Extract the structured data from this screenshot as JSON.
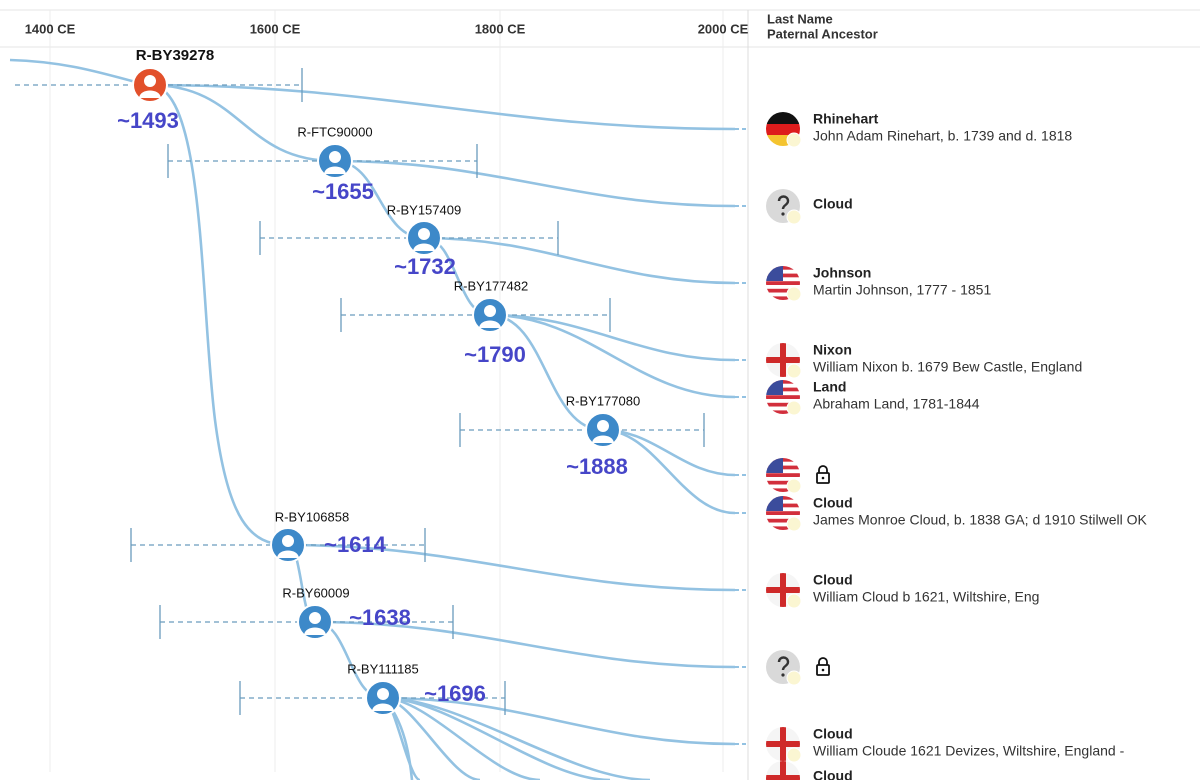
{
  "timeline": {
    "ticks": [
      "1400 CE",
      "1600 CE",
      "1800 CE",
      "2000 CE"
    ]
  },
  "header": {
    "last_name": "Last Name",
    "paternal_ancestor": "Paternal Ancestor"
  },
  "nodes": [
    {
      "label": "R-BY39278",
      "year": "~1493"
    },
    {
      "label": "R-FTC90000",
      "year": "~1655"
    },
    {
      "label": "R-BY157409",
      "year": "~1732"
    },
    {
      "label": "R-BY177482",
      "year": "~1790"
    },
    {
      "label": "R-BY177080",
      "year": "~1888"
    },
    {
      "label": "R-BY106858",
      "year": "~1614"
    },
    {
      "label": "R-BY60009",
      "year": "~1638"
    },
    {
      "label": "R-BY111185",
      "year": "~1696"
    }
  ],
  "ancestors": [
    {
      "surname": "Rhinehart",
      "description": "John Adam Rinehart, b. 1739 and d. 1818"
    },
    {
      "surname": "Cloud"
    },
    {
      "surname": "Johnson",
      "description": "Martin Johnson, 1777 - 1851"
    },
    {
      "surname": "Nixon",
      "description": "William Nixon b. 1679 Bew Castle, England"
    },
    {
      "surname": "Land",
      "description": "Abraham Land, 1781-1844"
    },
    {
      "surname": "Cloud",
      "description": "James Monroe Cloud, b. 1838 GA; d 1910 Stilwell OK"
    },
    {
      "surname": "Cloud",
      "description": "William Cloud b 1621, Wiltshire, Eng"
    },
    {
      "surname": "Cloud",
      "description": "William Cloude 1621 Devizes, Wiltshire, England -"
    },
    {
      "surname": "Cloud"
    }
  ]
}
